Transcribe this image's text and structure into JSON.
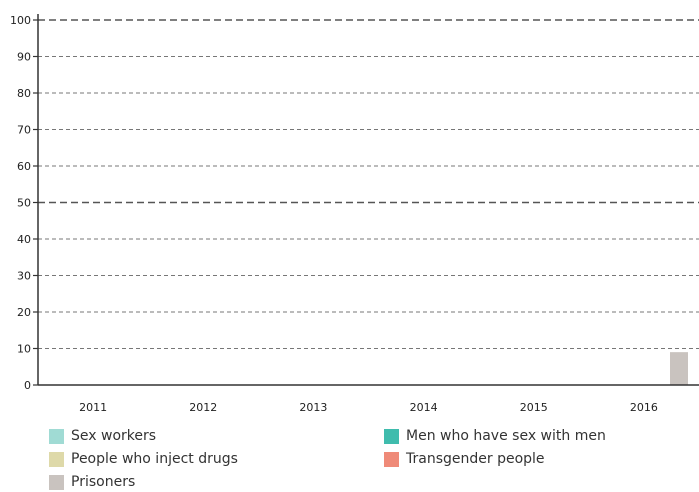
{
  "chart_data": {
    "type": "bar",
    "categories": [
      "2011",
      "2012",
      "2013",
      "2014",
      "2015",
      "2016"
    ],
    "series": [
      {
        "name": "Sex workers",
        "color": "#a0dbd4",
        "values": [
          null,
          null,
          null,
          null,
          null,
          null
        ]
      },
      {
        "name": "Men who have sex with men",
        "color": "#3fbcad",
        "values": [
          null,
          null,
          null,
          null,
          null,
          null
        ]
      },
      {
        "name": "People who inject drugs",
        "color": "#ded9a9",
        "values": [
          null,
          null,
          null,
          null,
          null,
          null
        ]
      },
      {
        "name": "Transgender people",
        "color": "#ef8a78",
        "values": [
          null,
          null,
          null,
          null,
          null,
          null
        ]
      },
      {
        "name": "Prisoners",
        "color": "#c9c3bf",
        "values": [
          null,
          null,
          null,
          null,
          null,
          9
        ]
      }
    ],
    "yticks": [
      "0",
      "10",
      "20",
      "30",
      "40",
      "50",
      "60",
      "70",
      "80",
      "90",
      "100"
    ],
    "ylim": [
      0,
      100
    ],
    "grid": true,
    "legend_position": "bottom"
  },
  "legend": [
    {
      "label": "Sex workers",
      "color": "#a0dbd4"
    },
    {
      "label": "Men who have sex with men",
      "color": "#3fbcad"
    },
    {
      "label": "People who inject drugs",
      "color": "#ded9a9"
    },
    {
      "label": "Transgender people",
      "color": "#ef8a78"
    },
    {
      "label": "Prisoners",
      "color": "#c9c3bf"
    }
  ]
}
